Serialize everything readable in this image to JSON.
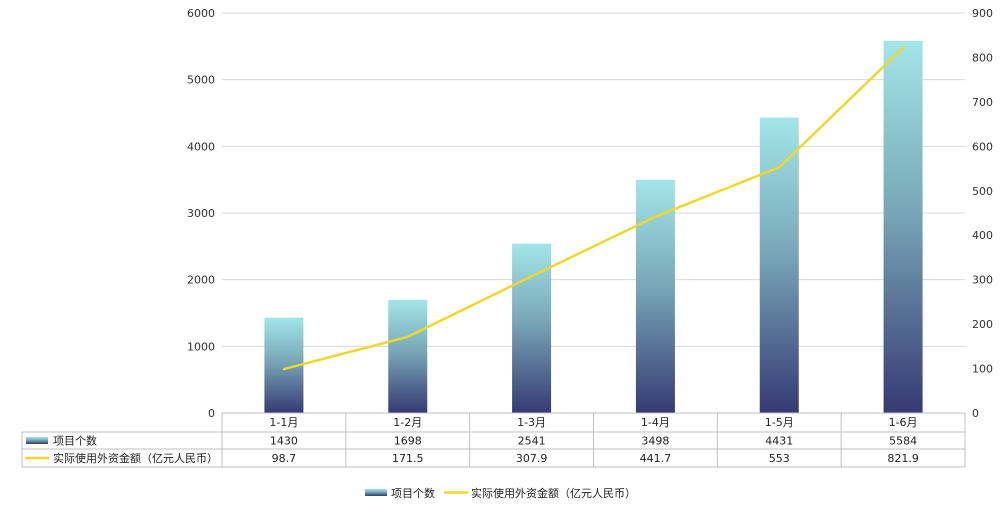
{
  "chart_data": {
    "type": "bar",
    "categories": [
      "1-1月",
      "1-2月",
      "1-3月",
      "1-4月",
      "1-5月",
      "1-6月"
    ],
    "series": [
      {
        "name": "项目个数",
        "type": "bar",
        "axis": "left",
        "values": [
          1430,
          1698,
          2541,
          3498,
          4431,
          5584
        ]
      },
      {
        "name": "实际使用外资金额（亿元人民币）",
        "type": "line",
        "axis": "right",
        "values": [
          98.7,
          171.5,
          307.9,
          441.7,
          553,
          821.9
        ]
      }
    ],
    "y_left": {
      "ticks": [
        "0",
        "1000",
        "2000",
        "3000",
        "4000",
        "5000",
        "6000"
      ],
      "range": [
        0,
        6000
      ]
    },
    "y_right": {
      "ticks": [
        "0",
        "100",
        "200",
        "300",
        "400",
        "500",
        "600",
        "700",
        "800",
        "900"
      ],
      "range": [
        0,
        900
      ]
    },
    "data_table_rows": [
      {
        "label": "项目个数",
        "cells": [
          "1430",
          "1698",
          "2541",
          "3498",
          "4431",
          "5584"
        ]
      },
      {
        "label": "实际使用外资金额（亿元人民币）",
        "cells": [
          "98.7",
          "171.5",
          "307.9",
          "441.7",
          "553",
          "821.9"
        ]
      }
    ],
    "legend_position": "bottom",
    "grid": true,
    "colors": {
      "bar_top": "#a2e6e8",
      "bar_bottom": "#363a73",
      "line": "#f0d82a",
      "grid": "#d9d9d9",
      "table_border": "#bfbfbf"
    }
  }
}
